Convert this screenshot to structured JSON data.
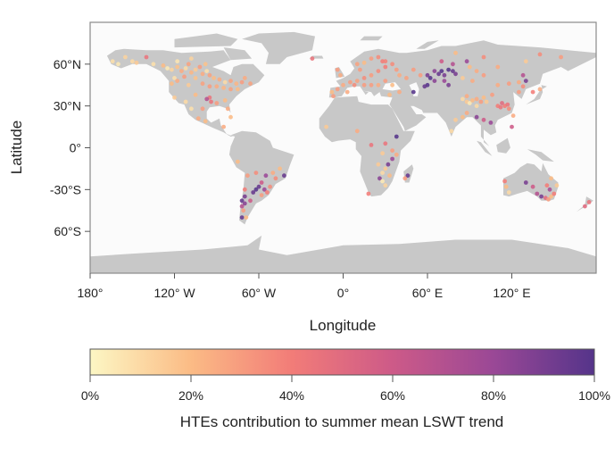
{
  "chart_data": {
    "type": "scatter",
    "projection": "equirectangular",
    "xlabel": "Longitude",
    "ylabel": "Latitude",
    "xlim": [
      -180,
      180
    ],
    "ylim": [
      -90,
      90
    ],
    "x_ticks": [
      {
        "value": -180,
        "label": "180°"
      },
      {
        "value": -120,
        "label": "120° W"
      },
      {
        "value": -60,
        "label": "60° W"
      },
      {
        "value": 0,
        "label": "0°"
      },
      {
        "value": 60,
        "label": "60° E"
      },
      {
        "value": 120,
        "label": "120° E"
      }
    ],
    "y_ticks": [
      {
        "value": 60,
        "label": "60°N"
      },
      {
        "value": 30,
        "label": "30°N"
      },
      {
        "value": 0,
        "label": "0°"
      },
      {
        "value": -30,
        "label": "-30°S"
      },
      {
        "value": -60,
        "label": "60°S"
      }
    ],
    "colorbar": {
      "title": "HTEs contribution to summer mean LSWT trend",
      "range": [
        0,
        100
      ],
      "ticks": [
        {
          "value": 0,
          "label": "0%"
        },
        {
          "value": 20,
          "label": "20%"
        },
        {
          "value": 40,
          "label": "40%"
        },
        {
          "value": 60,
          "label": "60%"
        },
        {
          "value": 80,
          "label": "80%"
        },
        {
          "value": 100,
          "label": "100%"
        }
      ],
      "colors": [
        "#fcf7c4",
        "#fbbb85",
        "#f27c78",
        "#cd5a88",
        "#9a4896",
        "#55348a"
      ]
    },
    "land_color": "#c8c8c8",
    "ocean_color": "#fbfbfb",
    "points_columns": [
      "longitude",
      "latitude",
      "HTEs contribution (%)"
    ],
    "points": [
      [
        -150,
        62,
        10
      ],
      [
        -147,
        61,
        15
      ],
      [
        -135,
        60,
        8
      ],
      [
        -128,
        59,
        20
      ],
      [
        -125,
        57,
        5
      ],
      [
        -122,
        56,
        12
      ],
      [
        -118,
        58,
        18
      ],
      [
        -115,
        55,
        25
      ],
      [
        -112,
        57,
        10
      ],
      [
        -110,
        60,
        28
      ],
      [
        -108,
        54,
        22
      ],
      [
        -105,
        56,
        15
      ],
      [
        -102,
        58,
        30
      ],
      [
        -100,
        53,
        25
      ],
      [
        -97,
        55,
        8
      ],
      [
        -95,
        52,
        28
      ],
      [
        -92,
        50,
        20
      ],
      [
        -88,
        49,
        25
      ],
      [
        -84,
        47,
        10
      ],
      [
        -80,
        48,
        28
      ],
      [
        -76,
        46,
        22
      ],
      [
        -72,
        47,
        30
      ],
      [
        -70,
        50,
        25
      ],
      [
        -66,
        46,
        28
      ],
      [
        -105,
        50,
        18
      ],
      [
        -113,
        51,
        30
      ],
      [
        -120,
        50,
        8
      ],
      [
        -118,
        48,
        25
      ],
      [
        -122,
        46,
        20
      ],
      [
        -110,
        45,
        15
      ],
      [
        -100,
        46,
        28
      ],
      [
        -95,
        44,
        30
      ],
      [
        -90,
        44,
        25
      ],
      [
        -85,
        43,
        22
      ],
      [
        -80,
        42,
        28
      ],
      [
        -75,
        42,
        20
      ],
      [
        -95,
        36,
        45
      ],
      [
        -97,
        35,
        70
      ],
      [
        -94,
        33,
        45
      ],
      [
        -90,
        32,
        30
      ],
      [
        -84,
        34,
        20
      ],
      [
        -82,
        28,
        25
      ],
      [
        -105,
        38,
        20
      ],
      [
        -112,
        33,
        10
      ],
      [
        -100,
        28,
        30
      ],
      [
        -103,
        21,
        25
      ],
      [
        -98,
        19,
        20
      ],
      [
        -108,
        28,
        8
      ],
      [
        -155,
        65,
        12
      ],
      [
        -160,
        60,
        5
      ],
      [
        -164,
        62,
        8
      ],
      [
        -120,
        36,
        15
      ],
      [
        -80,
        22,
        20
      ],
      [
        -85,
        15,
        25
      ],
      [
        -140,
        65,
        45
      ],
      [
        -118,
        62,
        6
      ],
      [
        -108,
        64,
        12
      ],
      [
        -98,
        60,
        18
      ],
      [
        -8,
        40,
        20
      ],
      [
        -4,
        42,
        30
      ],
      [
        0,
        45,
        25
      ],
      [
        5,
        47,
        30
      ],
      [
        10,
        48,
        28
      ],
      [
        15,
        50,
        35
      ],
      [
        20,
        52,
        30
      ],
      [
        25,
        55,
        35
      ],
      [
        30,
        58,
        40
      ],
      [
        28,
        62,
        40
      ],
      [
        25,
        65,
        35
      ],
      [
        20,
        64,
        30
      ],
      [
        15,
        61,
        20
      ],
      [
        10,
        60,
        28
      ],
      [
        12,
        56,
        30
      ],
      [
        30,
        62,
        38
      ],
      [
        35,
        60,
        35
      ],
      [
        38,
        56,
        30
      ],
      [
        40,
        52,
        25
      ],
      [
        45,
        50,
        28
      ],
      [
        30,
        48,
        30
      ],
      [
        25,
        45,
        25
      ],
      [
        20,
        45,
        30
      ],
      [
        35,
        45,
        20
      ],
      [
        -2,
        52,
        25
      ],
      [
        -4,
        56,
        30
      ],
      [
        -22,
        64,
        45
      ],
      [
        15,
        45,
        30
      ],
      [
        8,
        45,
        35
      ],
      [
        3,
        40,
        25
      ],
      [
        -7,
        37,
        30
      ],
      [
        33,
        38,
        20
      ],
      [
        40,
        40,
        25
      ],
      [
        50,
        56,
        30
      ],
      [
        55,
        52,
        30
      ],
      [
        60,
        52,
        90
      ],
      [
        62,
        50,
        100
      ],
      [
        65,
        55,
        85
      ],
      [
        68,
        53,
        95
      ],
      [
        70,
        55,
        100
      ],
      [
        72,
        52,
        90
      ],
      [
        75,
        56,
        100
      ],
      [
        78,
        55,
        95
      ],
      [
        80,
        53,
        90
      ],
      [
        60,
        45,
        100
      ],
      [
        58,
        44,
        95
      ],
      [
        65,
        48,
        85
      ],
      [
        72,
        48,
        80
      ],
      [
        75,
        45,
        90
      ],
      [
        70,
        62,
        60
      ],
      [
        78,
        60,
        70
      ],
      [
        50,
        40,
        100
      ],
      [
        88,
        62,
        80
      ],
      [
        90,
        58,
        20
      ],
      [
        95,
        55,
        25
      ],
      [
        100,
        52,
        30
      ],
      [
        85,
        50,
        15
      ],
      [
        92,
        48,
        25
      ],
      [
        85,
        35,
        10
      ],
      [
        88,
        33,
        15
      ],
      [
        90,
        32,
        5
      ],
      [
        92,
        34,
        20
      ],
      [
        95,
        35,
        25
      ],
      [
        98,
        33,
        30
      ],
      [
        100,
        36,
        20
      ],
      [
        102,
        33,
        15
      ],
      [
        88,
        37,
        25
      ],
      [
        95,
        30,
        10
      ],
      [
        110,
        30,
        40
      ],
      [
        112,
        29,
        45
      ],
      [
        115,
        30,
        40
      ],
      [
        117,
        31,
        45
      ],
      [
        113,
        32,
        50
      ],
      [
        118,
        28,
        35
      ],
      [
        106,
        38,
        30
      ],
      [
        110,
        45,
        25
      ],
      [
        118,
        46,
        30
      ],
      [
        125,
        47,
        25
      ],
      [
        128,
        44,
        35
      ],
      [
        130,
        48,
        90
      ],
      [
        128,
        52,
        70
      ],
      [
        125,
        40,
        30
      ],
      [
        135,
        40,
        40
      ],
      [
        140,
        42,
        25
      ],
      [
        105,
        18,
        80
      ],
      [
        100,
        20,
        60
      ],
      [
        95,
        22,
        85
      ],
      [
        85,
        22,
        20
      ],
      [
        80,
        20,
        15
      ],
      [
        77,
        12,
        10
      ],
      [
        88,
        25,
        25
      ],
      [
        120,
        15,
        60
      ],
      [
        121,
        23,
        25
      ],
      [
        140,
        67,
        35
      ],
      [
        155,
        65,
        30
      ],
      [
        110,
        58,
        25
      ],
      [
        130,
        62,
        15
      ],
      [
        100,
        65,
        35
      ],
      [
        80,
        68,
        20
      ],
      [
        -12,
        15,
        15
      ],
      [
        10,
        12,
        25
      ],
      [
        20,
        2,
        45
      ],
      [
        30,
        3,
        45
      ],
      [
        35,
        -8,
        80
      ],
      [
        32,
        -12,
        90
      ],
      [
        30,
        -15,
        15
      ],
      [
        28,
        -18,
        10
      ],
      [
        26,
        -22,
        85
      ],
      [
        28,
        -24,
        5
      ],
      [
        30,
        -27,
        12
      ],
      [
        33,
        -20,
        20
      ],
      [
        25,
        -12,
        15
      ],
      [
        35,
        -2,
        30
      ],
      [
        38,
        8,
        100
      ],
      [
        38,
        -5,
        25
      ],
      [
        18,
        -33,
        40
      ],
      [
        46,
        -20,
        95
      ],
      [
        44,
        -22,
        30
      ],
      [
        28,
        -4,
        15
      ],
      [
        -75,
        -10,
        20
      ],
      [
        -68,
        -20,
        30
      ],
      [
        -62,
        -18,
        35
      ],
      [
        -55,
        -20,
        80
      ],
      [
        -50,
        -18,
        25
      ],
      [
        -48,
        -22,
        35
      ],
      [
        -42,
        -20,
        95
      ],
      [
        -45,
        -15,
        20
      ],
      [
        -58,
        -25,
        60
      ],
      [
        -60,
        -28,
        95
      ],
      [
        -62,
        -30,
        100
      ],
      [
        -64,
        -32,
        95
      ],
      [
        -56,
        -30,
        80
      ],
      [
        -54,
        -32,
        40
      ],
      [
        -52,
        -28,
        35
      ],
      [
        -58,
        -34,
        30
      ],
      [
        -70,
        -35,
        90
      ],
      [
        -72,
        -38,
        95
      ],
      [
        -70,
        -40,
        85
      ],
      [
        -72,
        -42,
        70
      ],
      [
        -71,
        -45,
        30
      ],
      [
        -72,
        -50,
        95
      ],
      [
        -69,
        -50,
        20
      ],
      [
        -66,
        -38,
        60
      ],
      [
        -70,
        -30,
        40
      ],
      [
        116,
        -28,
        20
      ],
      [
        118,
        -32,
        10
      ],
      [
        115,
        -24,
        40
      ],
      [
        130,
        -25,
        90
      ],
      [
        135,
        -28,
        60
      ],
      [
        138,
        -33,
        70
      ],
      [
        141,
        -35,
        90
      ],
      [
        144,
        -36,
        50
      ],
      [
        146,
        -37,
        30
      ],
      [
        148,
        -35,
        20
      ],
      [
        150,
        -33,
        40
      ],
      [
        147,
        -30,
        75
      ],
      [
        145,
        -27,
        40
      ],
      [
        152,
        -27,
        15
      ],
      [
        148,
        -22,
        20
      ],
      [
        172,
        -42,
        50
      ],
      [
        175,
        -39,
        45
      ]
    ]
  }
}
